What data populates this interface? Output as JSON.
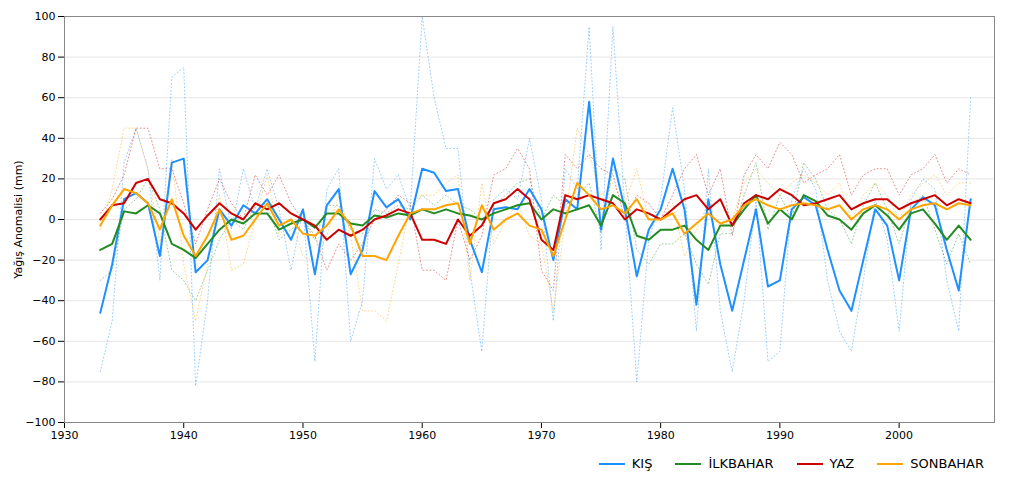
{
  "chart_data": {
    "type": "line",
    "y_label": "Yağış Anomalisi (mm)",
    "x": [
      1933,
      1934,
      1935,
      1936,
      1937,
      1938,
      1939,
      1940,
      1941,
      1942,
      1943,
      1944,
      1945,
      1946,
      1947,
      1948,
      1949,
      1950,
      1951,
      1952,
      1953,
      1954,
      1955,
      1956,
      1957,
      1958,
      1959,
      1960,
      1961,
      1962,
      1963,
      1964,
      1965,
      1966,
      1967,
      1968,
      1969,
      1970,
      1971,
      1972,
      1973,
      1974,
      1975,
      1976,
      1977,
      1978,
      1979,
      1980,
      1981,
      1982,
      1983,
      1984,
      1985,
      1986,
      1987,
      1988,
      1989,
      1990,
      1991,
      1992,
      1993,
      1994,
      1995,
      1996,
      1997,
      1998,
      1999,
      2000,
      2001,
      2002,
      2003,
      2004,
      2005,
      2006
    ],
    "series": [
      {
        "color": "#1E90FF",
        "line_style": "dotted",
        "values": [
          -75,
          -50,
          28,
          45,
          25,
          -30,
          70,
          75,
          -82,
          -40,
          25,
          -5,
          25,
          5,
          25,
          5,
          -25,
          5,
          -70,
          15,
          25,
          -60,
          -40,
          30,
          15,
          22,
          5,
          100,
          60,
          35,
          35,
          -25,
          -65,
          10,
          15,
          10,
          40,
          10,
          -50,
          25,
          15,
          95,
          -15,
          95,
          5,
          -80,
          -10,
          10,
          55,
          15,
          -55,
          25,
          -45,
          -75,
          -40,
          10,
          -70,
          -65,
          10,
          25,
          15,
          -30,
          -55,
          -65,
          -30,
          10,
          -10,
          -55,
          10,
          20,
          15,
          -30,
          -55,
          60
        ]
      },
      {
        "color": "#228B22",
        "line_style": "dotted",
        "values": [
          -30,
          -25,
          5,
          10,
          20,
          5,
          -25,
          -30,
          -40,
          -25,
          -10,
          0,
          -5,
          7,
          7,
          -10,
          -5,
          0,
          -10,
          7,
          7,
          -5,
          -7,
          5,
          3,
          7,
          5,
          12,
          7,
          12,
          7,
          5,
          0,
          7,
          12,
          18,
          20,
          0,
          12,
          7,
          12,
          18,
          -7,
          25,
          20,
          -15,
          -22,
          -12,
          -12,
          -7,
          -22,
          -32,
          -7,
          -7,
          12,
          28,
          -5,
          12,
          0,
          28,
          20,
          5,
          0,
          -12,
          7,
          18,
          5,
          -12,
          7,
          12,
          -5,
          -22,
          -7,
          -22
        ]
      },
      {
        "color": "#CC0000",
        "line_style": "dotted",
        "values": [
          3,
          10,
          22,
          45,
          45,
          25,
          25,
          8,
          -12,
          5,
          20,
          8,
          0,
          22,
          12,
          22,
          8,
          0,
          -8,
          -25,
          -12,
          -20,
          -12,
          0,
          5,
          12,
          8,
          -25,
          -25,
          -30,
          0,
          -20,
          -8,
          22,
          25,
          35,
          25,
          -25,
          -35,
          32,
          25,
          32,
          25,
          22,
          0,
          12,
          8,
          0,
          12,
          25,
          32,
          12,
          25,
          -8,
          22,
          32,
          25,
          38,
          32,
          18,
          22,
          25,
          32,
          12,
          22,
          25,
          25,
          12,
          22,
          25,
          32,
          18,
          25,
          22
        ]
      },
      {
        "color": "#FFA500",
        "line_style": "dotted",
        "values": [
          -5,
          15,
          45,
          45,
          25,
          -12,
          30,
          -22,
          -50,
          -22,
          12,
          -25,
          -22,
          0,
          22,
          -8,
          0,
          -18,
          -22,
          -8,
          12,
          -8,
          -45,
          -45,
          -50,
          -22,
          8,
          12,
          12,
          18,
          22,
          -30,
          18,
          -12,
          0,
          8,
          -8,
          -12,
          -45,
          0,
          45,
          32,
          12,
          18,
          8,
          25,
          0,
          0,
          8,
          -18,
          -5,
          8,
          -5,
          0,
          18,
          25,
          18,
          12,
          18,
          22,
          18,
          12,
          18,
          0,
          12,
          18,
          12,
          0,
          12,
          18,
          22,
          12,
          18,
          18
        ]
      },
      {
        "name": "KIŞ",
        "color": "#1E90FF",
        "line_style": "solid",
        "values": [
          -46,
          -22,
          10,
          13,
          8,
          -18,
          28,
          30,
          -26,
          -20,
          5,
          -3,
          7,
          3,
          10,
          0,
          -10,
          5,
          -27,
          7,
          15,
          -27,
          -15,
          14,
          6,
          10,
          0,
          25,
          23,
          14,
          15,
          -10,
          -26,
          5,
          6,
          5,
          15,
          5,
          -20,
          10,
          5,
          58,
          -5,
          30,
          5,
          -28,
          -5,
          5,
          25,
          5,
          -42,
          10,
          -22,
          -45,
          -20,
          5,
          -33,
          -30,
          5,
          11,
          7,
          -15,
          -35,
          -45,
          -20,
          5,
          -3,
          -30,
          5,
          11,
          7,
          -15,
          -35,
          10
        ]
      },
      {
        "name": "İLKBAHAR",
        "color": "#228B22",
        "line_style": "solid",
        "values": [
          -15,
          -12,
          4,
          3,
          7,
          3,
          -12,
          -15,
          -19,
          -12,
          -5,
          0,
          -2,
          3,
          3,
          -5,
          -2,
          0,
          -4,
          3,
          3,
          -2,
          -3,
          2,
          1,
          3,
          2,
          5,
          3,
          5,
          3,
          2,
          0,
          3,
          5,
          7,
          8,
          0,
          5,
          3,
          5,
          7,
          -3,
          12,
          8,
          -8,
          -10,
          -5,
          -5,
          -3,
          -10,
          -15,
          -3,
          -3,
          5,
          12,
          -2,
          5,
          0,
          12,
          9,
          2,
          0,
          -5,
          3,
          7,
          2,
          -5,
          3,
          5,
          -2,
          -10,
          -3,
          -10
        ]
      },
      {
        "name": "YAZ",
        "color": "#CC0000",
        "line_style": "solid",
        "values": [
          0,
          7,
          8,
          18,
          20,
          10,
          8,
          3,
          -5,
          2,
          8,
          3,
          0,
          8,
          5,
          8,
          3,
          0,
          -3,
          -10,
          -5,
          -8,
          -5,
          0,
          2,
          5,
          3,
          -10,
          -10,
          -12,
          0,
          -8,
          -3,
          8,
          10,
          15,
          10,
          -10,
          -15,
          12,
          10,
          12,
          10,
          8,
          0,
          5,
          3,
          0,
          5,
          10,
          12,
          5,
          10,
          -3,
          8,
          12,
          10,
          15,
          12,
          7,
          8,
          10,
          12,
          5,
          8,
          10,
          10,
          5,
          8,
          10,
          12,
          7,
          10,
          8
        ]
      },
      {
        "name": "SONBAHAR",
        "color": "#FFA500",
        "line_style": "solid",
        "values": [
          -3,
          7,
          15,
          13,
          8,
          -5,
          10,
          -8,
          -18,
          -8,
          5,
          -10,
          -8,
          0,
          8,
          -3,
          0,
          -7,
          -8,
          -3,
          5,
          -3,
          -18,
          -18,
          -20,
          -8,
          3,
          5,
          5,
          7,
          8,
          -12,
          7,
          -5,
          0,
          3,
          -3,
          -5,
          -18,
          0,
          18,
          12,
          5,
          7,
          3,
          10,
          0,
          0,
          3,
          -7,
          -2,
          3,
          -2,
          0,
          7,
          10,
          7,
          5,
          7,
          8,
          7,
          5,
          7,
          0,
          5,
          7,
          5,
          0,
          5,
          7,
          8,
          5,
          8,
          7
        ]
      }
    ],
    "xlim": [
      1930,
      2008
    ],
    "xticks": [
      1930,
      1940,
      1950,
      1960,
      1970,
      1980,
      1990,
      2000
    ],
    "ylim": [
      -100,
      100
    ],
    "yticks": [
      -100,
      -80,
      -60,
      -40,
      -20,
      0,
      20,
      40,
      60,
      80,
      100
    ],
    "grid": "y",
    "legend": "lower right"
  }
}
